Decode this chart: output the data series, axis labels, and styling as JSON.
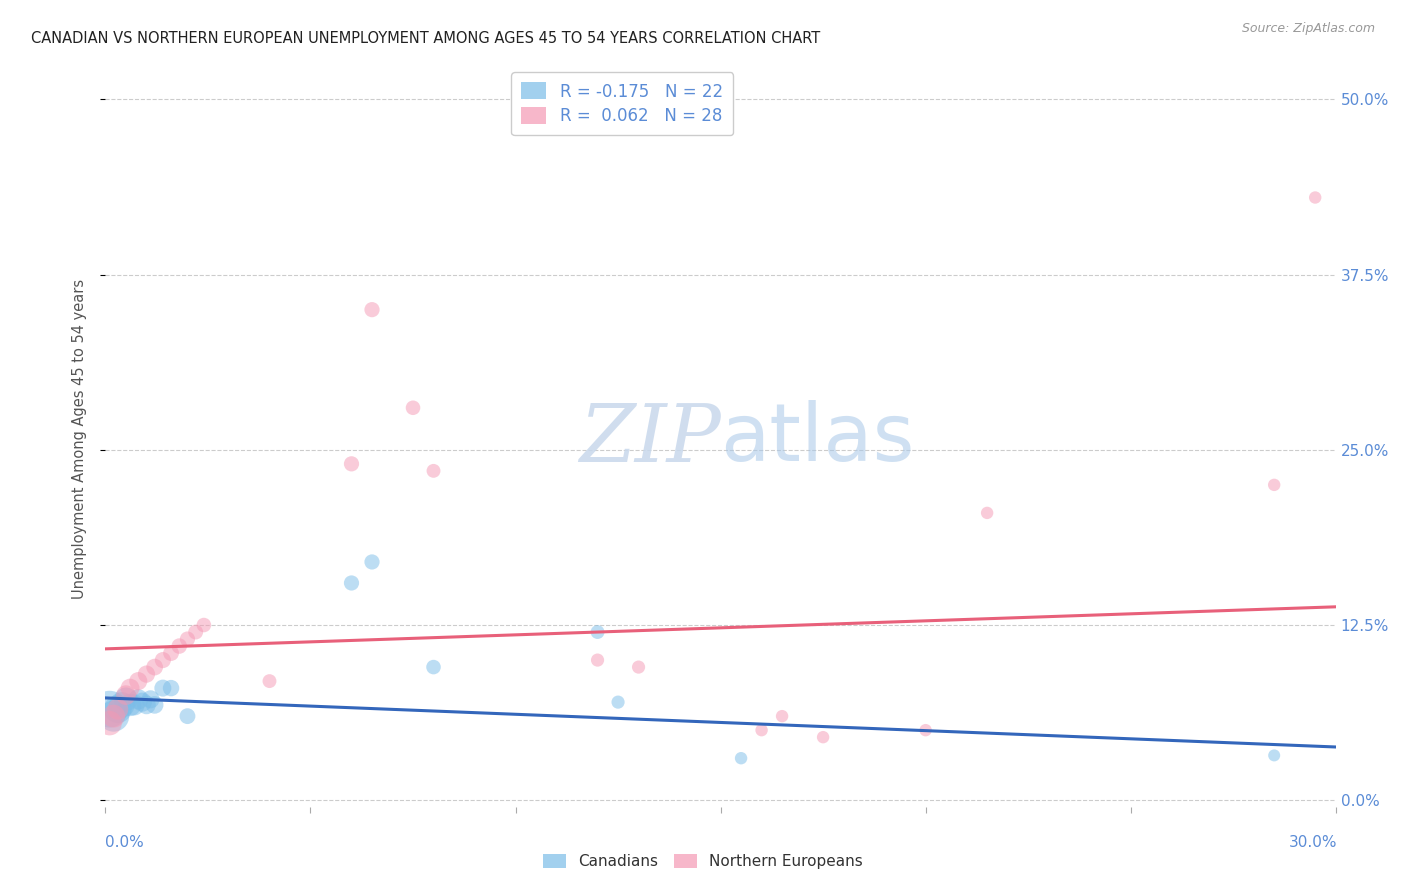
{
  "title": "CANADIAN VS NORTHERN EUROPEAN UNEMPLOYMENT AMONG AGES 45 TO 54 YEARS CORRELATION CHART",
  "source": "Source: ZipAtlas.com",
  "ylabel": "Unemployment Among Ages 45 to 54 years",
  "ytick_values": [
    0.0,
    0.125,
    0.25,
    0.375,
    0.5
  ],
  "ytick_labels_right": [
    "0.0%",
    "12.5%",
    "25.0%",
    "37.5%",
    "50.0%"
  ],
  "xlim": [
    0.0,
    0.3
  ],
  "ylim": [
    -0.005,
    0.52
  ],
  "canadians_color": "#7bbde8",
  "northern_europeans_color": "#f499b4",
  "canadians_line_color": "#3366bb",
  "northern_europeans_line_color": "#e8607a",
  "canadians_line_x0": 0.0,
  "canadians_line_y0": 0.073,
  "canadians_line_x1": 0.3,
  "canadians_line_y1": 0.038,
  "northern_europeans_line_x0": 0.0,
  "northern_europeans_line_y0": 0.108,
  "northern_europeans_line_x1": 0.3,
  "northern_europeans_line_y1": 0.138,
  "canadians_x": [
    0.001,
    0.002,
    0.003,
    0.004,
    0.005,
    0.006,
    0.007,
    0.008,
    0.009,
    0.01,
    0.011,
    0.012,
    0.014,
    0.016,
    0.02,
    0.06,
    0.065,
    0.08,
    0.12,
    0.125,
    0.155,
    0.285
  ],
  "canadians_y": [
    0.065,
    0.06,
    0.065,
    0.068,
    0.072,
    0.068,
    0.068,
    0.072,
    0.07,
    0.068,
    0.072,
    0.068,
    0.08,
    0.08,
    0.06,
    0.155,
    0.17,
    0.095,
    0.12,
    0.07,
    0.03,
    0.032
  ],
  "canadians_size": [
    700,
    500,
    400,
    340,
    290,
    260,
    230,
    210,
    190,
    180,
    170,
    160,
    150,
    140,
    130,
    120,
    120,
    110,
    100,
    90,
    80,
    75
  ],
  "northern_europeans_x": [
    0.001,
    0.002,
    0.003,
    0.005,
    0.006,
    0.008,
    0.01,
    0.012,
    0.014,
    0.016,
    0.018,
    0.02,
    0.022,
    0.024,
    0.04,
    0.06,
    0.065,
    0.075,
    0.08,
    0.12,
    0.13,
    0.16,
    0.165,
    0.175,
    0.2,
    0.215,
    0.285,
    0.295
  ],
  "northern_europeans_y": [
    0.055,
    0.06,
    0.065,
    0.075,
    0.08,
    0.085,
    0.09,
    0.095,
    0.1,
    0.105,
    0.11,
    0.115,
    0.12,
    0.125,
    0.085,
    0.24,
    0.35,
    0.28,
    0.235,
    0.1,
    0.095,
    0.05,
    0.06,
    0.045,
    0.05,
    0.205,
    0.225,
    0.43
  ],
  "northern_europeans_size": [
    310,
    270,
    230,
    200,
    185,
    170,
    155,
    145,
    135,
    130,
    125,
    120,
    115,
    110,
    100,
    120,
    120,
    110,
    100,
    90,
    90,
    80,
    80,
    80,
    80,
    80,
    80,
    80
  ],
  "watermark_zip": "ZIP",
  "watermark_atlas": "atlas",
  "background_color": "#ffffff",
  "grid_color": "#cccccc",
  "tick_label_color": "#5b8cd6"
}
